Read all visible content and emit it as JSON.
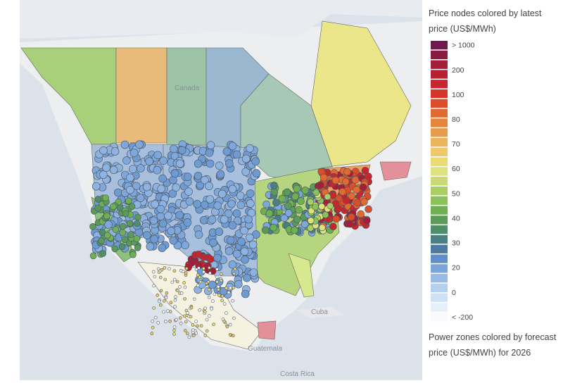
{
  "legend": {
    "title": "Price nodes colored by latest price (US$/MWh)",
    "swatches": [
      "#6d1b4d",
      "#8b1a3f",
      "#a51d36",
      "#b81f30",
      "#c7272c",
      "#d3372a",
      "#dc4d2b",
      "#e26a30",
      "#e5843a",
      "#e89c4a",
      "#ecb45c",
      "#eec86a",
      "#e9dc72",
      "#dde37a",
      "#c6da70",
      "#a9cf64",
      "#8cc25a",
      "#6fb052",
      "#5a9c5a",
      "#4f8d6b",
      "#4a7f84",
      "#4b7ba0",
      "#5f8ec9",
      "#7aa5dc",
      "#96bce6",
      "#b3d0ef",
      "#cfe2f5",
      "#e6eff9",
      "#f7f9fc"
    ],
    "ticks": [
      "> 1000",
      "200",
      "100",
      "80",
      "70",
      "60",
      "50",
      "40",
      "30",
      "20",
      "0",
      "< -200"
    ],
    "footnote": "Power zones colored by forecast price (US$/MWh) for 2026"
  },
  "map": {
    "labels": [
      "Canada",
      "Cuba",
      "Costa Rica",
      "Guatemala"
    ]
  }
}
